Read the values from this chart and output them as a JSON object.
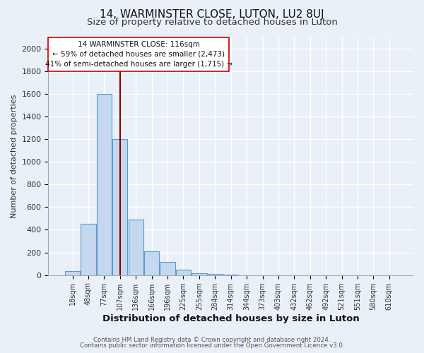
{
  "title": "14, WARMINSTER CLOSE, LUTON, LU2 8UJ",
  "subtitle": "Size of property relative to detached houses in Luton",
  "xlabel": "Distribution of detached houses by size in Luton",
  "ylabel": "Number of detached properties",
  "bar_labels": [
    "18sqm",
    "48sqm",
    "77sqm",
    "107sqm",
    "136sqm",
    "166sqm",
    "196sqm",
    "225sqm",
    "255sqm",
    "284sqm",
    "314sqm",
    "344sqm",
    "373sqm",
    "403sqm",
    "432sqm",
    "462sqm",
    "492sqm",
    "521sqm",
    "551sqm",
    "580sqm",
    "610sqm"
  ],
  "bar_values": [
    35,
    455,
    1600,
    1200,
    490,
    210,
    115,
    45,
    20,
    10,
    5,
    0,
    0,
    0,
    0,
    0,
    0,
    0,
    0,
    0,
    0
  ],
  "bar_color": "#c5d8ed",
  "bar_edge_color": "#5b9bd5",
  "vline_x": 3.0,
  "vline_color": "#8b0000",
  "annotation_line1": "14 WARMINSTER CLOSE: 116sqm",
  "annotation_line2": "← 59% of detached houses are smaller (2,473)",
  "annotation_line3": "41% of semi-detached houses are larger (1,715) →",
  "ylim": [
    0,
    2100
  ],
  "yticks": [
    0,
    200,
    400,
    600,
    800,
    1000,
    1200,
    1400,
    1600,
    1800,
    2000
  ],
  "bg_color": "#eaf0f8",
  "grid_color": "#ffffff",
  "footer1": "Contains HM Land Registry data © Crown copyright and database right 2024.",
  "footer2": "Contains public sector information licensed under the Open Government Licence v3.0.",
  "title_fontsize": 11,
  "subtitle_fontsize": 9.5,
  "xlabel_fontsize": 9.5,
  "ylabel_fontsize": 8
}
